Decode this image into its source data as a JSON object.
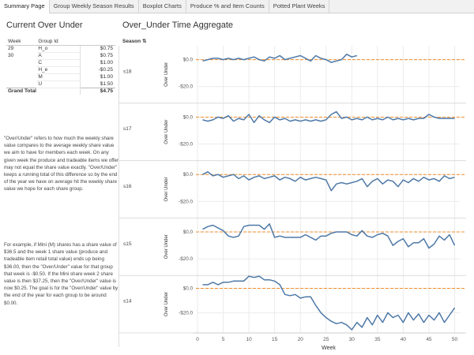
{
  "tabs": [
    {
      "label": "Summary Page",
      "active": true
    },
    {
      "label": "Group Weekly Season Results",
      "active": false
    },
    {
      "label": "Boxplot Charts",
      "active": false
    },
    {
      "label": "Produce % and Item Counts",
      "active": false
    },
    {
      "label": "Potted Plant Weeks",
      "active": false
    }
  ],
  "left": {
    "title": "Current Over Under",
    "table": {
      "headers": [
        "Week",
        "Group Id"
      ],
      "rows": [
        {
          "week": "29",
          "group": "H_o",
          "value": "$0.75"
        },
        {
          "week": "30",
          "group": "A",
          "value": "$0.75"
        },
        {
          "week": "",
          "group": "C",
          "value": "$1.00"
        },
        {
          "week": "",
          "group": "H_e",
          "value": "-$0.25"
        },
        {
          "week": "",
          "group": "M",
          "value": "$1.00"
        },
        {
          "week": "",
          "group": "U",
          "value": "$1.50"
        }
      ],
      "total_label": "Grand Total",
      "total_value": "$4.75"
    },
    "description_1": "\"Over/Under\" refers to how much the weekly share value compares to the average weekly share value we aim to have for members each week. On any given week the produce and tradeable items we offer may not equal the share value exactly. \"Over/Under\" keeps a running total of this difference so by the end of the year we have on average hit the weekly share value we hope for each share group.",
    "description_2": "For example, if Mini (M) shares has a share value of $36.5 and the week 1 share value (produce and tradeable item retail total value) ends up being $36.00, then the \"Over/Under\" value for that group that week is -$0.50. If the Mini share week 2 share value is then $37.25, then the \"Over/Under\" value is now $0.25. The goal is for the \"Over/Under\" value by the end of the year for each group to be around $0.00."
  },
  "chart_title": "Over_Under Time Aggregate",
  "season_header": "Season",
  "season_header_icon": "sort-icon",
  "colors": {
    "line": "#4e79a7",
    "reference": "#f28e2b",
    "grid": "#ebebeb"
  },
  "chart_data": {
    "type": "line",
    "xlabel": "Week",
    "ylabel": "Over Under",
    "xlim": [
      0,
      51
    ],
    "x_ticks": [
      0,
      5,
      10,
      15,
      20,
      25,
      30,
      35,
      40,
      45,
      50
    ],
    "reference_line": 0,
    "y_ticks": [
      "$0.0",
      "-$20.0"
    ],
    "panels": [
      {
        "season": "s18",
        "ylim": [
          -30,
          8
        ],
        "points": [
          [
            1,
            -1
          ],
          [
            2,
            0
          ],
          [
            3,
            1
          ],
          [
            4,
            1
          ],
          [
            5,
            0
          ],
          [
            6,
            1
          ],
          [
            7,
            0
          ],
          [
            8,
            1
          ],
          [
            9,
            0
          ],
          [
            10,
            1
          ],
          [
            11,
            2
          ],
          [
            12,
            0
          ],
          [
            13,
            -1
          ],
          [
            14,
            2
          ],
          [
            15,
            1
          ],
          [
            16,
            3
          ],
          [
            17,
            0
          ],
          [
            18,
            1
          ],
          [
            19,
            2
          ],
          [
            20,
            3
          ],
          [
            21,
            1
          ],
          [
            22,
            -1
          ],
          [
            23,
            3
          ],
          [
            24,
            1
          ],
          [
            25,
            0
          ],
          [
            26,
            -2
          ],
          [
            27,
            -1
          ],
          [
            28,
            0
          ],
          [
            29,
            4
          ],
          [
            30,
            2
          ],
          [
            31,
            3
          ]
        ]
      },
      {
        "season": "s17",
        "ylim": [
          -30,
          8
        ],
        "points": [
          [
            1,
            -2
          ],
          [
            2,
            -3
          ],
          [
            3,
            -2
          ],
          [
            4,
            0
          ],
          [
            5,
            -1
          ],
          [
            6,
            1
          ],
          [
            7,
            -3
          ],
          [
            8,
            -1
          ],
          [
            9,
            -2
          ],
          [
            10,
            2
          ],
          [
            11,
            -4
          ],
          [
            12,
            1
          ],
          [
            13,
            -2
          ],
          [
            14,
            -4
          ],
          [
            15,
            0
          ],
          [
            16,
            -2
          ],
          [
            17,
            -1
          ],
          [
            18,
            -3
          ],
          [
            19,
            -2
          ],
          [
            20,
            -3
          ],
          [
            21,
            -2
          ],
          [
            22,
            -3
          ],
          [
            23,
            -2
          ],
          [
            24,
            -3
          ],
          [
            25,
            -2
          ],
          [
            26,
            2
          ],
          [
            27,
            4
          ],
          [
            28,
            -1
          ],
          [
            29,
            0
          ],
          [
            30,
            -2
          ],
          [
            31,
            -1
          ],
          [
            32,
            -2
          ],
          [
            33,
            0
          ],
          [
            34,
            -2
          ],
          [
            35,
            -1
          ],
          [
            36,
            -2
          ],
          [
            37,
            0
          ],
          [
            38,
            -2
          ],
          [
            39,
            -1
          ],
          [
            40,
            -2
          ],
          [
            41,
            -1
          ],
          [
            42,
            -2
          ],
          [
            43,
            -1
          ],
          [
            44,
            -1
          ],
          [
            45,
            2
          ],
          [
            46,
            0
          ],
          [
            47,
            -1
          ],
          [
            48,
            -1
          ],
          [
            49,
            -1
          ],
          [
            50,
            -1
          ]
        ]
      },
      {
        "season": "s16",
        "ylim": [
          -30,
          8
        ],
        "points": [
          [
            1,
            0
          ],
          [
            2,
            2
          ],
          [
            3,
            -1
          ],
          [
            4,
            0
          ],
          [
            5,
            -2
          ],
          [
            6,
            -1
          ],
          [
            7,
            0
          ],
          [
            8,
            -3
          ],
          [
            9,
            -1
          ],
          [
            10,
            -4
          ],
          [
            11,
            -2
          ],
          [
            12,
            -1
          ],
          [
            13,
            -3
          ],
          [
            14,
            -2
          ],
          [
            15,
            -1
          ],
          [
            16,
            -4
          ],
          [
            17,
            -2
          ],
          [
            18,
            -3
          ],
          [
            19,
            -5
          ],
          [
            20,
            -2
          ],
          [
            21,
            -4
          ],
          [
            22,
            -3
          ],
          [
            23,
            -2
          ],
          [
            24,
            -3
          ],
          [
            25,
            -4
          ],
          [
            26,
            -12
          ],
          [
            27,
            -7
          ],
          [
            28,
            -6
          ],
          [
            29,
            -7
          ],
          [
            30,
            -6
          ],
          [
            31,
            -5
          ],
          [
            32,
            -3
          ],
          [
            33,
            -9
          ],
          [
            34,
            -5
          ],
          [
            35,
            -3
          ],
          [
            36,
            -7
          ],
          [
            37,
            -4
          ],
          [
            38,
            -5
          ],
          [
            39,
            -9
          ],
          [
            40,
            -4
          ],
          [
            41,
            -6
          ],
          [
            42,
            -3
          ],
          [
            43,
            -5
          ],
          [
            44,
            -2
          ],
          [
            45,
            -4
          ],
          [
            46,
            -3
          ],
          [
            47,
            -5
          ],
          [
            48,
            -1
          ],
          [
            49,
            -3
          ],
          [
            50,
            -2
          ]
        ]
      },
      {
        "season": "s15",
        "ylim": [
          -30,
          8
        ],
        "points": [
          [
            1,
            2
          ],
          [
            2,
            4
          ],
          [
            3,
            5
          ],
          [
            4,
            3
          ],
          [
            5,
            1
          ],
          [
            6,
            -3
          ],
          [
            7,
            -4
          ],
          [
            8,
            -3
          ],
          [
            9,
            4
          ],
          [
            10,
            5
          ],
          [
            11,
            5
          ],
          [
            12,
            5
          ],
          [
            13,
            2
          ],
          [
            14,
            6
          ],
          [
            15,
            -4
          ],
          [
            16,
            -3
          ],
          [
            17,
            -4
          ],
          [
            18,
            -4
          ],
          [
            19,
            -4
          ],
          [
            20,
            -4
          ],
          [
            21,
            -2
          ],
          [
            22,
            -4
          ],
          [
            23,
            -6
          ],
          [
            24,
            -3
          ],
          [
            25,
            -3
          ],
          [
            26,
            -1
          ],
          [
            27,
            0
          ],
          [
            28,
            0
          ],
          [
            29,
            0
          ],
          [
            30,
            -2
          ],
          [
            31,
            -3
          ],
          [
            32,
            1
          ],
          [
            33,
            -3
          ],
          [
            34,
            -4
          ],
          [
            35,
            -2
          ],
          [
            36,
            -1
          ],
          [
            37,
            -3
          ],
          [
            38,
            -10
          ],
          [
            39,
            -7
          ],
          [
            40,
            -5
          ],
          [
            41,
            -11
          ],
          [
            42,
            -8
          ],
          [
            43,
            -8
          ],
          [
            44,
            -5
          ],
          [
            45,
            -12
          ],
          [
            46,
            -9
          ],
          [
            47,
            -3
          ],
          [
            48,
            -6
          ],
          [
            49,
            -2
          ],
          [
            50,
            -10
          ]
        ]
      },
      {
        "season": "s14",
        "ylim": [
          -34,
          8
        ],
        "points": [
          [
            1,
            3
          ],
          [
            2,
            3
          ],
          [
            3,
            5
          ],
          [
            4,
            3
          ],
          [
            5,
            5
          ],
          [
            6,
            5
          ],
          [
            7,
            6
          ],
          [
            8,
            6
          ],
          [
            9,
            6
          ],
          [
            10,
            10
          ],
          [
            11,
            9
          ],
          [
            12,
            10
          ],
          [
            13,
            7
          ],
          [
            14,
            7
          ],
          [
            15,
            6
          ],
          [
            16,
            3
          ],
          [
            17,
            -5
          ],
          [
            18,
            -6
          ],
          [
            19,
            -5
          ],
          [
            20,
            -8
          ],
          [
            21,
            -7
          ],
          [
            22,
            -7
          ],
          [
            23,
            -14
          ],
          [
            24,
            -20
          ],
          [
            25,
            -24
          ],
          [
            26,
            -27
          ],
          [
            27,
            -29
          ],
          [
            28,
            -28
          ],
          [
            29,
            -30
          ],
          [
            30,
            -34
          ],
          [
            31,
            -28
          ],
          [
            32,
            -32
          ],
          [
            33,
            -24
          ],
          [
            34,
            -30
          ],
          [
            35,
            -22
          ],
          [
            36,
            -28
          ],
          [
            37,
            -20
          ],
          [
            38,
            -24
          ],
          [
            39,
            -22
          ],
          [
            40,
            -28
          ],
          [
            41,
            -20
          ],
          [
            42,
            -26
          ],
          [
            43,
            -21
          ],
          [
            44,
            -28
          ],
          [
            45,
            -22
          ],
          [
            46,
            -26
          ],
          [
            47,
            -20
          ],
          [
            48,
            -28
          ],
          [
            49,
            -22
          ],
          [
            50,
            -16
          ]
        ]
      }
    ]
  }
}
